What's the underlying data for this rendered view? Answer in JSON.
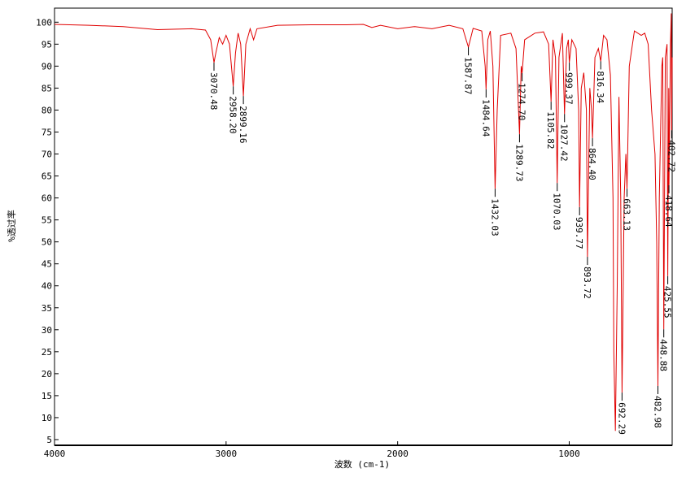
{
  "chart_data": {
    "type": "line",
    "xlabel": "波数 (cm-1)",
    "ylabel": "%透过率",
    "xlim": [
      4000,
      400
    ],
    "ylim": [
      3.7,
      103.2
    ],
    "xticks": [
      4000,
      3000,
      2000,
      1000
    ],
    "yticks": [
      5,
      10,
      15,
      20,
      25,
      30,
      35,
      40,
      45,
      50,
      55,
      60,
      65,
      70,
      75,
      80,
      85,
      90,
      95,
      100
    ],
    "series": [
      {
        "color": "#e00000",
        "x": [
          4000,
          3800,
          3600,
          3400,
          3200,
          3120,
          3090,
          3070.48,
          3060,
          3040,
          3020,
          3000,
          2980,
          2958.2,
          2945,
          2930,
          2915,
          2899.16,
          2885,
          2860,
          2840,
          2820,
          2700,
          2500,
          2300,
          2200,
          2150,
          2100,
          2000,
          1900,
          1800,
          1700,
          1620,
          1587.87,
          1560,
          1510,
          1490,
          1484.64,
          1475,
          1460,
          1445,
          1432.03,
          1420,
          1400,
          1340,
          1310,
          1289.73,
          1280,
          1274.7,
          1260,
          1200,
          1150,
          1120,
          1105.82,
          1095,
          1080,
          1070.03,
          1060,
          1040,
          1027.42,
          1015,
          1005,
          999.37,
          985,
          960,
          945,
          939.77,
          930,
          915,
          900,
          893.72,
          880,
          870,
          864.4,
          850,
          830,
          816.34,
          800,
          780,
          760,
          745,
          740,
          731,
          720,
          710,
          700,
          692.29,
          680,
          670,
          663.13,
          650,
          620,
          580,
          560,
          540,
          520,
          500,
          490,
          482.98,
          475,
          460,
          455,
          448.88,
          440,
          430,
          425.55,
          420,
          418.64,
          410,
          405,
          402.72,
          400
        ],
        "values": [
          99.5,
          99.3,
          99,
          98.3,
          98.5,
          98.2,
          96,
          90.8,
          93,
          96.5,
          95,
          97,
          95,
          85.4,
          93,
          97.5,
          95,
          83.2,
          95,
          98.5,
          96,
          98.5,
          99.3,
          99.4,
          99.4,
          99.5,
          98.8,
          99.3,
          98.5,
          99,
          98.5,
          99.3,
          98.5,
          94.3,
          98.6,
          98,
          90,
          84.7,
          96,
          98,
          90,
          62.1,
          80,
          97,
          97.5,
          94,
          74.5,
          90,
          88.4,
          96,
          97.5,
          97.8,
          95,
          81.9,
          96,
          92,
          63.4,
          92,
          97.5,
          79.1,
          94,
          96,
          90.8,
          96,
          94,
          80,
          57.9,
          85,
          88.5,
          80,
          46.6,
          85,
          80,
          73.6,
          92,
          94,
          91.1,
          97,
          96,
          88,
          60,
          25,
          7,
          40,
          83,
          60,
          15.7,
          60,
          70,
          62.1,
          90,
          98,
          97,
          97.5,
          95,
          80,
          70,
          50,
          17.2,
          60,
          90,
          92,
          30.1,
          92,
          95,
          42.2,
          85,
          62.9,
          95,
          102,
          75.4,
          92
        ]
      }
    ],
    "annotations": [
      {
        "x": 3070.48,
        "y": 90.8,
        "text": "3070.48"
      },
      {
        "x": 2958.2,
        "y": 85.4,
        "text": "2958.20"
      },
      {
        "x": 2899.16,
        "y": 83.2,
        "text": "2899.16"
      },
      {
        "x": 1587.87,
        "y": 94.3,
        "text": "1587.87"
      },
      {
        "x": 1484.64,
        "y": 84.7,
        "text": "1484.64"
      },
      {
        "x": 1432.03,
        "y": 62.1,
        "text": "1432.03"
      },
      {
        "x": 1289.73,
        "y": 74.5,
        "text": "1289.73"
      },
      {
        "x": 1274.7,
        "y": 88.4,
        "text": "1274.70"
      },
      {
        "x": 1105.82,
        "y": 81.9,
        "text": "1105.82"
      },
      {
        "x": 1070.03,
        "y": 63.4,
        "text": "1070.03"
      },
      {
        "x": 1027.42,
        "y": 79.1,
        "text": "1027.42"
      },
      {
        "x": 999.37,
        "y": 90.8,
        "text": "999.37"
      },
      {
        "x": 939.77,
        "y": 57.9,
        "text": "939.77"
      },
      {
        "x": 893.72,
        "y": 46.6,
        "text": "893.72"
      },
      {
        "x": 864.4,
        "y": 73.6,
        "text": "864.40"
      },
      {
        "x": 816.34,
        "y": 91.1,
        "text": "816.34"
      },
      {
        "x": 692.29,
        "y": 15.7,
        "text": "692.29"
      },
      {
        "x": 663.13,
        "y": 62.1,
        "text": "663.13"
      },
      {
        "x": 482.98,
        "y": 17.2,
        "text": "482.98"
      },
      {
        "x": 448.88,
        "y": 30.1,
        "text": "448.88"
      },
      {
        "x": 425.55,
        "y": 42.2,
        "text": "425.55"
      },
      {
        "x": 418.64,
        "y": 62.9,
        "text": "418.64"
      },
      {
        "x": 402.72,
        "y": 75.4,
        "text": "402.72"
      }
    ]
  }
}
